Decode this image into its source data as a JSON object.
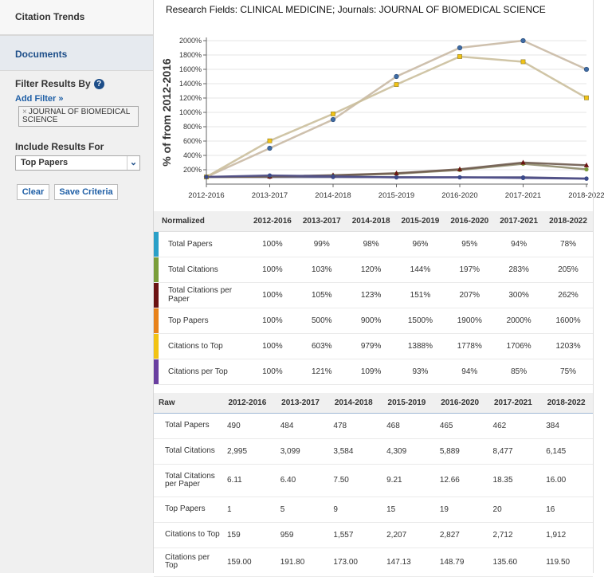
{
  "sidebar": {
    "citation_trends": "Citation Trends",
    "documents": "Documents",
    "filter_results_by": "Filter Results By",
    "help_icon": "?",
    "add_filter": "Add Filter »",
    "filter_chip": "JOURNAL OF BIOMEDICAL SCIENCE",
    "filter_chip_remove": "×",
    "include_results_for": "Include Results For",
    "include_selected": "Top Papers",
    "clear_button": "Clear",
    "save_button": "Save Criteria"
  },
  "main": {
    "title": "Research Fields: CLINICAL MEDICINE; Journals: JOURNAL OF BIOMEDICAL SCIENCE"
  },
  "chart_data": {
    "type": "line",
    "ylabel": "% of from 2012-2016",
    "categories": [
      "2012-2016",
      "2013-2017",
      "2014-2018",
      "2015-2019",
      "2016-2020",
      "2017-2021",
      "2018-2022"
    ],
    "y_ticks": [
      "200%",
      "400%",
      "600%",
      "800%",
      "1000%",
      "1200%",
      "1400%",
      "1600%",
      "1800%",
      "2000%"
    ],
    "ylim": [
      0,
      2000
    ],
    "grid": true,
    "series": [
      {
        "name": "Total Papers",
        "color": "#2aa0c8",
        "values": [
          100,
          99,
          98,
          96,
          95,
          94,
          78
        ]
      },
      {
        "name": "Total Citations",
        "color": "#7a9e3a",
        "values": [
          100,
          103,
          120,
          144,
          197,
          283,
          205
        ]
      },
      {
        "name": "Total Citations per Paper",
        "color": "#6b1212",
        "values": [
          100,
          105,
          123,
          151,
          207,
          300,
          262
        ]
      },
      {
        "name": "Top Papers",
        "color": "#e8821a",
        "values": [
          100,
          500,
          900,
          1500,
          1900,
          2000,
          1600
        ]
      },
      {
        "name": "Citations to Top",
        "color": "#f2c314",
        "values": [
          100,
          603,
          979,
          1388,
          1778,
          1706,
          1203
        ]
      },
      {
        "name": "Citations per Top",
        "color": "#6a3fa0",
        "values": [
          100,
          121,
          109,
          93,
          94,
          85,
          75
        ]
      }
    ]
  },
  "normalized": {
    "header": "Normalized",
    "columns": [
      "2012-2016",
      "2013-2017",
      "2014-2018",
      "2015-2019",
      "2016-2020",
      "2017-2021",
      "2018-2022"
    ],
    "rows": [
      {
        "label": "Total Papers",
        "color": "#2aa0c8",
        "values": [
          "100%",
          "99%",
          "98%",
          "96%",
          "95%",
          "94%",
          "78%"
        ]
      },
      {
        "label": "Total Citations",
        "color": "#7a9e3a",
        "values": [
          "100%",
          "103%",
          "120%",
          "144%",
          "197%",
          "283%",
          "205%"
        ]
      },
      {
        "label": "Total Citations per Paper",
        "color": "#6b1212",
        "values": [
          "100%",
          "105%",
          "123%",
          "151%",
          "207%",
          "300%",
          "262%"
        ]
      },
      {
        "label": "Top Papers",
        "color": "#e8821a",
        "values": [
          "100%",
          "500%",
          "900%",
          "1500%",
          "1900%",
          "2000%",
          "1600%"
        ]
      },
      {
        "label": "Citations to Top",
        "color": "#f2c314",
        "values": [
          "100%",
          "603%",
          "979%",
          "1388%",
          "1778%",
          "1706%",
          "1203%"
        ]
      },
      {
        "label": "Citations per Top",
        "color": "#6a3fa0",
        "values": [
          "100%",
          "121%",
          "109%",
          "93%",
          "94%",
          "85%",
          "75%"
        ]
      }
    ]
  },
  "raw": {
    "header": "Raw",
    "columns": [
      "2012-2016",
      "2013-2017",
      "2014-2018",
      "2015-2019",
      "2016-2020",
      "2017-2021",
      "2018-2022"
    ],
    "rows": [
      {
        "label": "Total Papers",
        "values": [
          "490",
          "484",
          "478",
          "468",
          "465",
          "462",
          "384"
        ]
      },
      {
        "label": "Total Citations",
        "values": [
          "2,995",
          "3,099",
          "3,584",
          "4,309",
          "5,889",
          "8,477",
          "6,145"
        ]
      },
      {
        "label": "Total Citations per Paper",
        "values": [
          "6.11",
          "6.40",
          "7.50",
          "9.21",
          "12.66",
          "18.35",
          "16.00"
        ]
      },
      {
        "label": "Top Papers",
        "values": [
          "1",
          "5",
          "9",
          "15",
          "19",
          "20",
          "16"
        ]
      },
      {
        "label": "Citations to Top",
        "values": [
          "159",
          "959",
          "1,557",
          "2,207",
          "2,827",
          "2,712",
          "1,912"
        ]
      },
      {
        "label": "Citations per Top",
        "values": [
          "159.00",
          "191.80",
          "173.00",
          "147.13",
          "148.79",
          "135.60",
          "119.50"
        ]
      }
    ]
  }
}
